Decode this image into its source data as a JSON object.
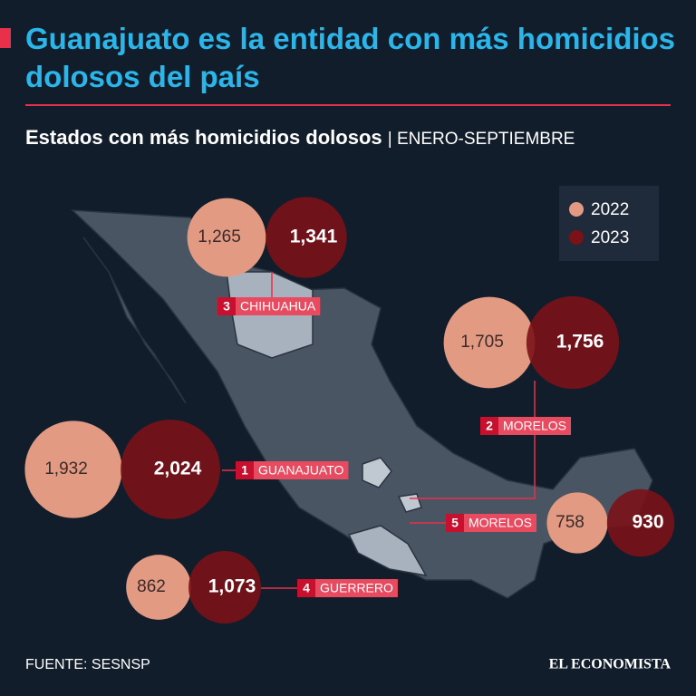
{
  "chart_data": {
    "type": "bubble",
    "title": "Guanajuato es la entidad con más homicidios dolosos del país",
    "subtitle": "Estados con más homicidios dolosos",
    "period": "| ENERO-SEPTIEMBRE",
    "source": "FUENTE: SESNSP",
    "brand": "EL ECONOMISTA",
    "ranks": [
      1,
      2,
      3,
      4,
      5
    ],
    "categories": [
      "GUANAJUATO",
      "MORELOS",
      "CHIHUAHUA",
      "GUERRERO",
      "MORELOS"
    ],
    "series": [
      {
        "name": "2022",
        "color": "#e39a82",
        "values": [
          1932,
          1705,
          1265,
          862,
          758
        ],
        "value_labels": [
          "1,932",
          "1,705",
          "1,265",
          "862",
          "758"
        ]
      },
      {
        "name": "2023",
        "color": "#7a1217",
        "values": [
          2024,
          1756,
          1341,
          1073,
          930
        ],
        "value_labels": [
          "2,024",
          "1,756",
          "1,341",
          "1,073",
          "930"
        ]
      }
    ],
    "legend": "top-right"
  }
}
